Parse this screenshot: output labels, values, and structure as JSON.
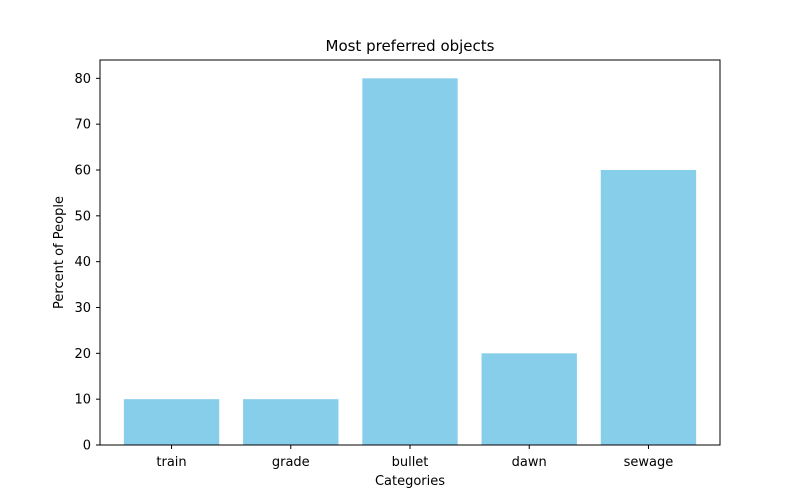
{
  "chart_data": {
    "type": "bar",
    "title": "Most preferred objects",
    "xlabel": "Categories",
    "ylabel": "Percent of People",
    "categories": [
      "train",
      "grade",
      "bullet",
      "dawn",
      "sewage"
    ],
    "values": [
      10,
      10,
      80,
      20,
      60
    ],
    "ylim": [
      0,
      84
    ],
    "yticks": [
      0,
      10,
      20,
      30,
      40,
      50,
      60,
      70,
      80
    ],
    "grid": false,
    "legend": "none",
    "colors": {
      "bar": "#87ceeb",
      "axis": "#000000",
      "background": "#ffffff"
    }
  }
}
